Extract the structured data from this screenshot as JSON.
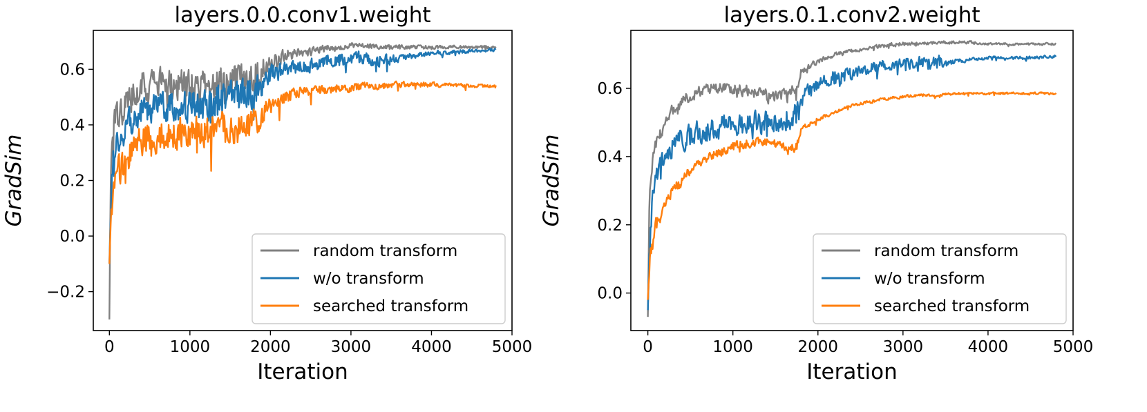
{
  "figure": {
    "colors": {
      "random": "#808080",
      "without": "#1f77b4",
      "searched": "#ff7f0e",
      "axis": "#000000",
      "legend_border": "#cccccc"
    }
  },
  "chart_data": [
    {
      "type": "line",
      "title": "layers.0.0.conv1.weight",
      "xlabel": "Iteration",
      "ylabel": "GradSim",
      "xlim": [
        -200,
        5000
      ],
      "ylim": [
        -0.34,
        0.74
      ],
      "xticks": [
        0,
        1000,
        2000,
        3000,
        4000,
        5000
      ],
      "xtick_labels": [
        "0",
        "1000",
        "2000",
        "3000",
        "4000",
        "5000"
      ],
      "yticks": [
        -0.2,
        0.0,
        0.2,
        0.4,
        0.6
      ],
      "ytick_labels": [
        "−0.2",
        "0.0",
        "0.2",
        "0.4",
        "0.6"
      ],
      "grid": false,
      "legend_position": "lower-right",
      "series": [
        {
          "name": "random transform",
          "color_key": "random",
          "x": [
            0,
            20,
            50,
            100,
            200,
            300,
            400,
            500,
            600,
            800,
            1000,
            1200,
            1400,
            1600,
            1800,
            2000,
            2200,
            2400,
            2600,
            2800,
            3000,
            3200,
            3400,
            3600,
            3800,
            4000,
            4200,
            4400,
            4600,
            4800
          ],
          "y": [
            -0.3,
            0.3,
            0.38,
            0.42,
            0.47,
            0.51,
            0.54,
            0.55,
            0.55,
            0.55,
            0.54,
            0.55,
            0.55,
            0.56,
            0.58,
            0.63,
            0.65,
            0.66,
            0.67,
            0.68,
            0.685,
            0.685,
            0.68,
            0.68,
            0.68,
            0.68,
            0.68,
            0.68,
            0.68,
            0.68
          ],
          "noise": [
            0,
            0.05,
            0.06,
            0.05,
            0.05,
            0.05,
            0.05,
            0.05,
            0.05,
            0.05,
            0.05,
            0.05,
            0.05,
            0.05,
            0.05,
            0.025,
            0.02,
            0.015,
            0.012,
            0.01,
            0.008,
            0.007,
            0.007,
            0.006,
            0.006,
            0.006,
            0.005,
            0.005,
            0.005,
            0.005
          ]
        },
        {
          "name": "w/o transform",
          "color_key": "without",
          "x": [
            0,
            20,
            50,
            100,
            200,
            300,
            400,
            500,
            600,
            800,
            1000,
            1200,
            1400,
            1600,
            1800,
            2000,
            2200,
            2400,
            2600,
            2800,
            3000,
            3200,
            3400,
            3600,
            3800,
            4000,
            4200,
            4400,
            4600,
            4800
          ],
          "y": [
            -0.1,
            0.15,
            0.25,
            0.33,
            0.39,
            0.42,
            0.44,
            0.46,
            0.46,
            0.47,
            0.47,
            0.48,
            0.49,
            0.5,
            0.52,
            0.58,
            0.6,
            0.61,
            0.62,
            0.63,
            0.64,
            0.64,
            0.63,
            0.64,
            0.65,
            0.66,
            0.66,
            0.665,
            0.665,
            0.67
          ],
          "noise": [
            0,
            0.05,
            0.06,
            0.06,
            0.05,
            0.05,
            0.05,
            0.05,
            0.05,
            0.05,
            0.05,
            0.05,
            0.05,
            0.05,
            0.05,
            0.03,
            0.025,
            0.02,
            0.02,
            0.02,
            0.02,
            0.02,
            0.02,
            0.012,
            0.01,
            0.008,
            0.007,
            0.006,
            0.005,
            0.005
          ]
        },
        {
          "name": "searched transform",
          "color_key": "searched",
          "x": [
            0,
            20,
            50,
            100,
            200,
            300,
            400,
            500,
            600,
            800,
            1000,
            1200,
            1400,
            1600,
            1800,
            2000,
            2200,
            2400,
            2600,
            2800,
            3000,
            3200,
            3400,
            3600,
            3800,
            4000,
            4200,
            4400,
            4600,
            4800
          ],
          "y": [
            -0.1,
            0.05,
            0.15,
            0.22,
            0.28,
            0.32,
            0.34,
            0.35,
            0.36,
            0.37,
            0.38,
            0.38,
            0.39,
            0.39,
            0.4,
            0.47,
            0.5,
            0.52,
            0.525,
            0.53,
            0.535,
            0.54,
            0.54,
            0.545,
            0.545,
            0.545,
            0.54,
            0.54,
            0.54,
            0.54
          ],
          "noise": [
            0,
            0.04,
            0.05,
            0.05,
            0.05,
            0.05,
            0.05,
            0.05,
            0.05,
            0.05,
            0.05,
            0.05,
            0.05,
            0.05,
            0.05,
            0.025,
            0.02,
            0.015,
            0.015,
            0.014,
            0.014,
            0.012,
            0.01,
            0.01,
            0.008,
            0.008,
            0.007,
            0.006,
            0.006,
            0.006
          ]
        }
      ]
    },
    {
      "type": "line",
      "title": "layers.0.1.conv2.weight",
      "xlabel": "Iteration",
      "ylabel": "GradSim",
      "xlim": [
        -200,
        5000
      ],
      "ylim": [
        -0.11,
        0.77
      ],
      "xticks": [
        0,
        1000,
        2000,
        3000,
        4000,
        5000
      ],
      "xtick_labels": [
        "0",
        "1000",
        "2000",
        "3000",
        "4000",
        "5000"
      ],
      "yticks": [
        0.0,
        0.2,
        0.4,
        0.6
      ],
      "ytick_labels": [
        "0.0",
        "0.2",
        "0.4",
        "0.6"
      ],
      "grid": false,
      "legend_position": "lower-right",
      "series": [
        {
          "name": "random transform",
          "color_key": "random",
          "x": [
            0,
            20,
            50,
            100,
            200,
            300,
            400,
            500,
            600,
            800,
            1000,
            1200,
            1400,
            1600,
            1750,
            1800,
            2000,
            2200,
            2400,
            2600,
            2800,
            3000,
            3200,
            3400,
            3600,
            3800,
            4000,
            4200,
            4400,
            4600,
            4800
          ],
          "y": [
            -0.07,
            0.3,
            0.38,
            0.44,
            0.5,
            0.54,
            0.56,
            0.58,
            0.59,
            0.6,
            0.6,
            0.59,
            0.58,
            0.58,
            0.6,
            0.65,
            0.68,
            0.7,
            0.71,
            0.72,
            0.725,
            0.73,
            0.73,
            0.735,
            0.735,
            0.735,
            0.73,
            0.73,
            0.73,
            0.73,
            0.73
          ],
          "noise": [
            0,
            0.02,
            0.02,
            0.02,
            0.015,
            0.015,
            0.015,
            0.015,
            0.015,
            0.015,
            0.015,
            0.015,
            0.015,
            0.015,
            0.015,
            0.008,
            0.007,
            0.006,
            0.005,
            0.005,
            0.005,
            0.005,
            0.004,
            0.004,
            0.004,
            0.004,
            0.003,
            0.003,
            0.003,
            0.003,
            0.003
          ]
        },
        {
          "name": "w/o transform",
          "color_key": "without",
          "x": [
            0,
            20,
            50,
            100,
            200,
            300,
            400,
            500,
            600,
            800,
            1000,
            1200,
            1400,
            1600,
            1750,
            1800,
            2000,
            2200,
            2400,
            2600,
            2800,
            3000,
            3200,
            3400,
            3600,
            3800,
            4000,
            4200,
            4400,
            4600,
            4800
          ],
          "y": [
            -0.05,
            0.15,
            0.25,
            0.33,
            0.4,
            0.43,
            0.45,
            0.46,
            0.47,
            0.48,
            0.49,
            0.5,
            0.5,
            0.51,
            0.52,
            0.57,
            0.61,
            0.63,
            0.64,
            0.66,
            0.665,
            0.67,
            0.675,
            0.675,
            0.68,
            0.685,
            0.69,
            0.69,
            0.69,
            0.69,
            0.695
          ],
          "noise": [
            0,
            0.04,
            0.04,
            0.03,
            0.03,
            0.03,
            0.03,
            0.03,
            0.03,
            0.03,
            0.03,
            0.03,
            0.03,
            0.03,
            0.03,
            0.02,
            0.02,
            0.02,
            0.015,
            0.015,
            0.015,
            0.015,
            0.018,
            0.02,
            0.006,
            0.005,
            0.004,
            0.004,
            0.004,
            0.004,
            0.004
          ]
        },
        {
          "name": "searched transform",
          "color_key": "searched",
          "x": [
            0,
            20,
            50,
            100,
            200,
            300,
            400,
            500,
            600,
            800,
            1000,
            1200,
            1400,
            1600,
            1750,
            1800,
            2000,
            2200,
            2400,
            2600,
            2800,
            3000,
            3200,
            3400,
            3600,
            3800,
            4000,
            4200,
            4400,
            4600,
            4800
          ],
          "y": [
            -0.02,
            0.08,
            0.14,
            0.2,
            0.26,
            0.3,
            0.33,
            0.36,
            0.38,
            0.41,
            0.43,
            0.44,
            0.44,
            0.43,
            0.43,
            0.48,
            0.51,
            0.53,
            0.55,
            0.56,
            0.57,
            0.575,
            0.58,
            0.58,
            0.585,
            0.585,
            0.585,
            0.585,
            0.585,
            0.585,
            0.585
          ],
          "noise": [
            0,
            0.025,
            0.025,
            0.02,
            0.015,
            0.015,
            0.015,
            0.012,
            0.012,
            0.012,
            0.012,
            0.012,
            0.012,
            0.012,
            0.012,
            0.006,
            0.005,
            0.004,
            0.004,
            0.004,
            0.004,
            0.004,
            0.003,
            0.003,
            0.003,
            0.003,
            0.003,
            0.003,
            0.003,
            0.003,
            0.003
          ]
        }
      ]
    }
  ]
}
